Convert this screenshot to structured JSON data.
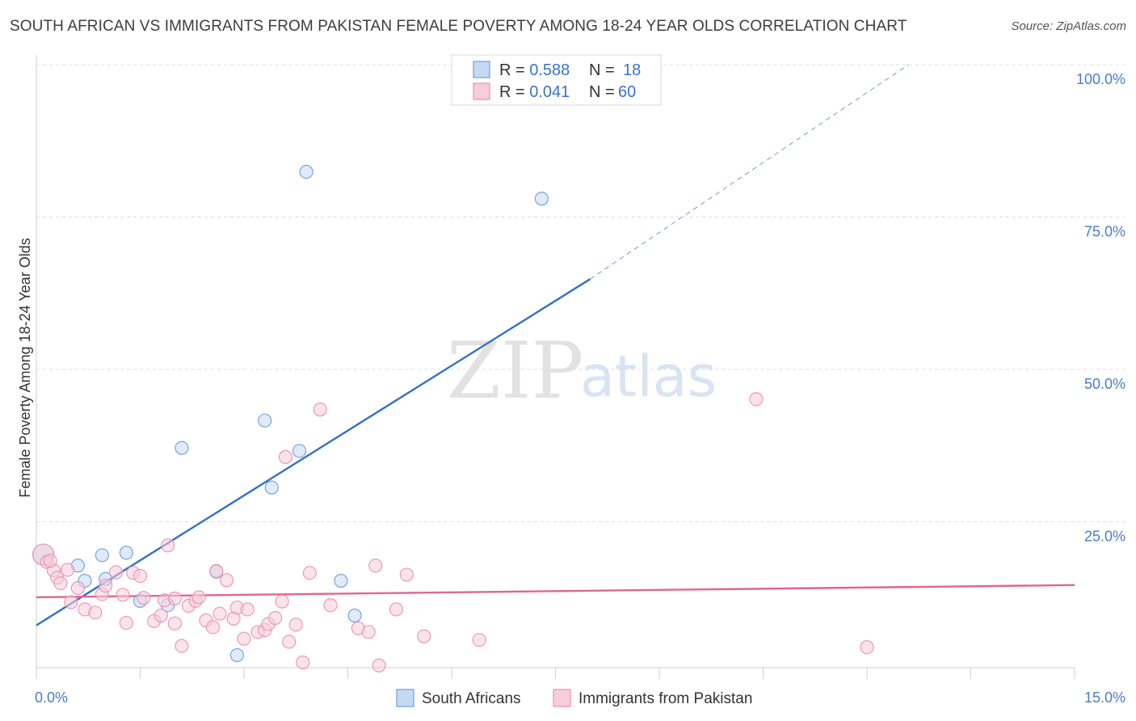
{
  "header": {
    "title": "SOUTH AFRICAN VS IMMIGRANTS FROM PAKISTAN FEMALE POVERTY AMONG 18-24 YEAR OLDS CORRELATION CHART",
    "source": "Source: ZipAtlas.com"
  },
  "watermark": {
    "zip": "ZIP",
    "atlas": "atlas"
  },
  "chart_data": {
    "type": "scatter",
    "title": "SOUTH AFRICAN VS IMMIGRANTS FROM PAKISTAN FEMALE POVERTY AMONG 18-24 YEAR OLDS CORRELATION CHART",
    "xlabel": "",
    "ylabel": "Female Poverty Among 18-24 Year Olds",
    "xlim": [
      0,
      15
    ],
    "ylim": [
      0,
      100
    ],
    "x_tick_labels": [
      "0.0%",
      "15.0%"
    ],
    "y_tick_labels": [
      "100.0%",
      "75.0%",
      "50.0%",
      "25.0%"
    ],
    "y_ticks": [
      100,
      75,
      50,
      25
    ],
    "grid": true,
    "legend": {
      "placement": "top-center",
      "entries": [
        {
          "r_label": "R = ",
          "r_value": "0.588",
          "n_label": "N = ",
          "n_value": "18"
        },
        {
          "r_label": "R = ",
          "r_value": "0.041",
          "n_label": "N = ",
          "n_value": "60"
        }
      ]
    },
    "bottom_legend": [
      "South Africans",
      "Immigrants from Pakistan"
    ],
    "series": [
      {
        "name": "South Africans",
        "color": "#6b9fe0",
        "fill": "#c6d9f3",
        "trend_color": "#2f6fcb",
        "trend": {
          "x0": 0.0,
          "y0": 10.4,
          "x1": 8.0,
          "y1": 67.2,
          "dash_to_x": 12.6,
          "dash_to_y": 100.0
        },
        "points": [
          [
            0.1,
            22.0
          ],
          [
            0.7,
            17.7
          ],
          [
            0.95,
            21.9
          ],
          [
            0.6,
            20.2
          ],
          [
            1.0,
            18.0
          ],
          [
            1.5,
            14.4
          ],
          [
            1.3,
            22.3
          ],
          [
            1.9,
            13.7
          ],
          [
            2.6,
            19.2
          ],
          [
            3.3,
            44.0
          ],
          [
            2.1,
            39.5
          ],
          [
            3.8,
            39.0
          ],
          [
            3.4,
            33.0
          ],
          [
            3.9,
            84.8
          ],
          [
            7.3,
            80.4
          ],
          [
            2.9,
            5.5
          ],
          [
            4.6,
            12.0
          ],
          [
            4.4,
            17.7
          ]
        ]
      },
      {
        "name": "Immigrants from Pakistan",
        "color": "#e993b2",
        "fill": "#f7ccdb",
        "trend_color": "#e06690",
        "trend": {
          "x0": 0.0,
          "y0": 15.0,
          "x1": 15.0,
          "y1": 17.0
        },
        "points": [
          [
            0.1,
            22.0
          ],
          [
            0.15,
            20.8
          ],
          [
            0.25,
            19.4
          ],
          [
            0.3,
            18.2
          ],
          [
            0.35,
            17.3
          ],
          [
            0.45,
            19.5
          ],
          [
            0.5,
            14.2
          ],
          [
            0.6,
            16.5
          ],
          [
            0.7,
            13.0
          ],
          [
            0.85,
            12.5
          ],
          [
            0.95,
            15.5
          ],
          [
            1.0,
            16.9
          ],
          [
            1.15,
            19.1
          ],
          [
            1.25,
            15.4
          ],
          [
            1.3,
            10.8
          ],
          [
            1.4,
            19.0
          ],
          [
            1.5,
            18.5
          ],
          [
            1.55,
            14.9
          ],
          [
            1.7,
            11.1
          ],
          [
            1.8,
            12.0
          ],
          [
            1.85,
            14.5
          ],
          [
            2.0,
            14.8
          ],
          [
            2.0,
            10.7
          ],
          [
            1.9,
            23.5
          ],
          [
            2.1,
            7.0
          ],
          [
            2.2,
            13.6
          ],
          [
            2.3,
            14.4
          ],
          [
            2.35,
            15.0
          ],
          [
            2.45,
            11.2
          ],
          [
            2.55,
            10.1
          ],
          [
            2.6,
            19.3
          ],
          [
            2.65,
            12.3
          ],
          [
            2.75,
            17.8
          ],
          [
            2.85,
            11.5
          ],
          [
            2.9,
            13.3
          ],
          [
            3.0,
            8.2
          ],
          [
            3.05,
            13.0
          ],
          [
            3.2,
            9.3
          ],
          [
            3.3,
            9.6
          ],
          [
            3.35,
            10.6
          ],
          [
            3.45,
            11.6
          ],
          [
            3.55,
            14.3
          ],
          [
            3.6,
            38.0
          ],
          [
            3.65,
            7.7
          ],
          [
            3.75,
            10.5
          ],
          [
            3.85,
            4.3
          ],
          [
            3.95,
            19.0
          ],
          [
            4.1,
            45.8
          ],
          [
            4.25,
            13.7
          ],
          [
            4.65,
            9.9
          ],
          [
            4.8,
            9.3
          ],
          [
            4.9,
            20.2
          ],
          [
            4.95,
            3.8
          ],
          [
            5.2,
            13.0
          ],
          [
            5.35,
            18.7
          ],
          [
            5.6,
            8.6
          ],
          [
            6.4,
            8.0
          ],
          [
            10.4,
            47.5
          ],
          [
            12.0,
            6.8
          ],
          [
            0.2,
            21.0
          ]
        ]
      }
    ]
  }
}
